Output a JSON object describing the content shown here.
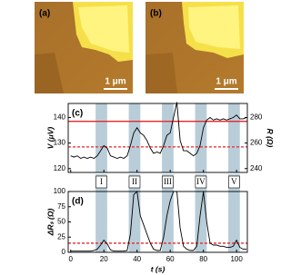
{
  "images": [
    {
      "label": "(a)",
      "scale_bar": "1 μm"
    },
    {
      "label": "(b)",
      "scale_bar": "1 μm"
    }
  ],
  "chart_data": [
    {
      "type": "line",
      "panel_label": "(c)",
      "y_label": "V (μV)",
      "y2_label": "R (Ω)",
      "x": [
        0,
        2,
        4,
        6,
        8,
        10,
        12,
        14,
        16,
        18,
        20,
        22,
        24,
        26,
        28,
        30,
        32,
        34,
        36,
        38,
        40,
        42,
        44,
        46,
        48,
        50,
        52,
        54,
        56,
        58,
        60,
        62,
        64,
        66,
        68,
        70,
        72,
        74,
        76,
        78,
        80,
        82,
        84,
        86,
        88,
        90,
        92,
        94,
        96,
        98,
        100,
        102,
        104,
        106
      ],
      "series": [
        {
          "color": "#000000",
          "values": [
            125,
            124.5,
            125,
            124,
            124.5,
            124,
            124.5,
            124,
            125,
            127,
            129,
            128,
            125,
            124.5,
            124,
            124.5,
            124,
            125,
            129,
            134,
            136,
            134,
            133,
            131,
            128,
            126,
            126.5,
            126,
            129,
            133,
            134,
            140,
            146,
            131,
            127,
            127,
            126,
            125,
            126,
            129,
            136,
            139,
            140,
            139,
            139.5,
            139,
            139.5,
            139,
            139.5,
            140,
            141,
            139.5,
            139.5,
            140
          ]
        }
      ],
      "hlines": [
        {
          "value": 138.5,
          "color": "#e8262a",
          "style": "solid"
        },
        {
          "value": 128.5,
          "color": "#e8262a",
          "style": "dashed"
        }
      ],
      "bands": [
        [
          15,
          22
        ],
        [
          35,
          42
        ],
        [
          55,
          62
        ],
        [
          75,
          82
        ],
        [
          95,
          102
        ]
      ],
      "band_color": "#b9cdd8",
      "xlim": [
        -1.5,
        106.5
      ],
      "xticks": [
        0,
        20,
        40,
        60,
        80,
        100
      ],
      "ylim": [
        118.5,
        145.5
      ],
      "yticks": [
        120,
        130,
        140
      ],
      "y2lim": [
        237,
        291
      ],
      "y2ticks": [
        240,
        260,
        280
      ]
    },
    {
      "type": "line",
      "panel_label": "(d)",
      "y_label": "ΔRₛ (Ω)",
      "x_label": "t (s)",
      "x": [
        0,
        2,
        4,
        6,
        8,
        10,
        12,
        14,
        16,
        18,
        20,
        22,
        24,
        26,
        28,
        30,
        32,
        34,
        36,
        38,
        40,
        42,
        44,
        46,
        48,
        50,
        52,
        54,
        56,
        58,
        60,
        62,
        64,
        66,
        68,
        70,
        72,
        74,
        76,
        78,
        80,
        82,
        84,
        86,
        88,
        90,
        92,
        94,
        96,
        98,
        100,
        102,
        104,
        106
      ],
      "series": [
        {
          "color": "#000000",
          "values": [
            2,
            2,
            2,
            2,
            2,
            2,
            2,
            3,
            5,
            12,
            20,
            14,
            4,
            2,
            2,
            2,
            2,
            3,
            30,
            95,
            100,
            60,
            45,
            30,
            15,
            5,
            3,
            3,
            25,
            60,
            85,
            100,
            100,
            40,
            10,
            5,
            3,
            3,
            10,
            60,
            100,
            50,
            15,
            12,
            12,
            10,
            10,
            8,
            8,
            10,
            20,
            8,
            5,
            5
          ]
        }
      ],
      "hlines": [
        {
          "value": 15,
          "color": "#e8262a",
          "style": "dashed"
        }
      ],
      "bands": [
        [
          15,
          22
        ],
        [
          35,
          42
        ],
        [
          55,
          62
        ],
        [
          75,
          82
        ],
        [
          95,
          102
        ]
      ],
      "band_color": "#b9cdd8",
      "band_labels": [
        "I",
        "II",
        "III",
        "IV",
        "V"
      ],
      "xlim": [
        -1.5,
        106.5
      ],
      "xticks": [
        0,
        20,
        40,
        60,
        80,
        100
      ],
      "ylim": [
        0,
        100
      ],
      "yticks": [
        0,
        25,
        50,
        75,
        100
      ]
    }
  ]
}
